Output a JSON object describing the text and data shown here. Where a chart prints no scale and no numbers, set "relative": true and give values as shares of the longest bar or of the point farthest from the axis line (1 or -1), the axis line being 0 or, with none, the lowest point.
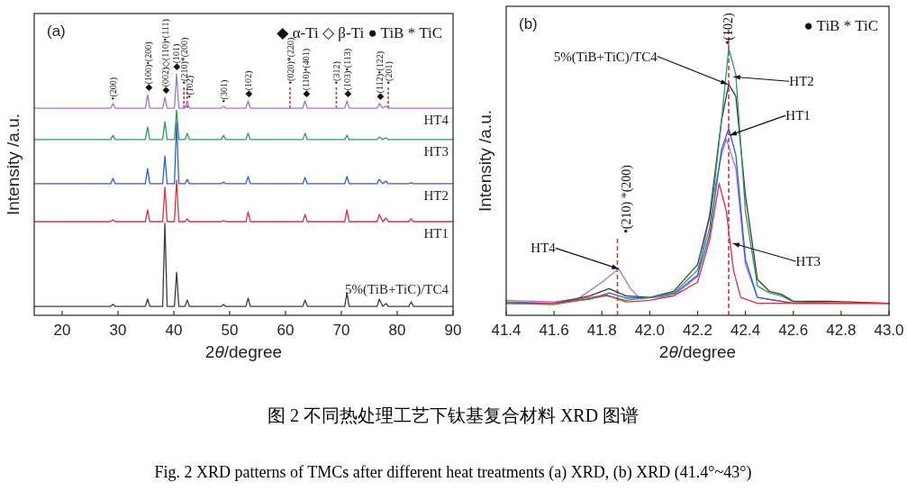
{
  "chart_data": [
    {
      "type": "line",
      "title": "(a)",
      "xlabel": "2θ/degree",
      "ylabel": "Intensity /a.u.",
      "relative": true,
      "xlim": [
        15,
        90
      ],
      "xticks": [
        20,
        30,
        40,
        50,
        60,
        70,
        80,
        90
      ],
      "x": [
        15,
        28.7,
        29.1,
        29.5,
        34.9,
        35.3,
        35.7,
        38.0,
        38.4,
        38.8,
        40.1,
        40.5,
        40.9,
        42.0,
        42.4,
        42.8,
        48.5,
        48.9,
        49.3,
        52.9,
        53.3,
        53.7,
        63.1,
        63.5,
        63.9,
        70.6,
        71.0,
        71.4,
        76.4,
        76.8,
        77.4,
        78.0,
        78.4,
        82.1,
        82.5,
        82.9,
        90
      ],
      "series": [
        {
          "name": "HT4",
          "color": "#a173d6",
          "values": [
            0.858,
            0.858,
            0.877,
            0.858,
            0.858,
            0.914,
            0.858,
            0.858,
            0.903,
            0.858,
            0.858,
            1.0,
            0.858,
            0.858,
            0.884,
            0.858,
            0.858,
            0.866,
            0.858,
            0.858,
            0.888,
            0.858,
            0.858,
            0.888,
            0.858,
            0.858,
            0.888,
            0.858,
            0.858,
            0.877,
            0.858,
            0.866,
            0.858,
            0.858,
            0.858,
            0.858,
            0.858
          ]
        },
        {
          "name": "HT3",
          "color": "#2e9a5a",
          "values": [
            0.728,
            0.728,
            0.746,
            0.728,
            0.728,
            0.78,
            0.728,
            0.728,
            0.802,
            0.728,
            0.728,
            0.85,
            0.728,
            0.728,
            0.754,
            0.728,
            0.728,
            0.746,
            0.728,
            0.728,
            0.754,
            0.728,
            0.728,
            0.754,
            0.728,
            0.728,
            0.746,
            0.728,
            0.728,
            0.739,
            0.728,
            0.735,
            0.728,
            0.728,
            0.728,
            0.728,
            0.728
          ]
        },
        {
          "name": "HT2",
          "color": "#2f5fd0",
          "values": [
            0.545,
            0.545,
            0.567,
            0.545,
            0.545,
            0.608,
            0.545,
            0.545,
            0.66,
            0.545,
            0.545,
            0.8,
            0.545,
            0.545,
            0.563,
            0.545,
            0.545,
            0.552,
            0.545,
            0.545,
            0.575,
            0.545,
            0.545,
            0.571,
            0.545,
            0.545,
            0.575,
            0.545,
            0.545,
            0.563,
            0.545,
            0.556,
            0.545,
            0.545,
            0.549,
            0.545,
            0.545
          ]
        },
        {
          "name": "HT1",
          "color": "#e0303a",
          "values": [
            0.388,
            0.388,
            0.396,
            0.388,
            0.388,
            0.437,
            0.388,
            0.388,
            0.53,
            0.388,
            0.388,
            0.56,
            0.388,
            0.388,
            0.4,
            0.388,
            0.388,
            0.392,
            0.388,
            0.388,
            0.429,
            0.388,
            0.388,
            0.418,
            0.388,
            0.388,
            0.437,
            0.388,
            0.388,
            0.418,
            0.388,
            0.403,
            0.388,
            0.388,
            0.4,
            0.388,
            0.388
          ]
        },
        {
          "name": "5%(TiB+TiC)/TC4",
          "color": "#3a3a3a",
          "values": [
            0.037,
            0.037,
            0.045,
            0.037,
            0.037,
            0.067,
            0.037,
            0.037,
            0.381,
            0.037,
            0.037,
            0.179,
            0.037,
            0.037,
            0.063,
            0.037,
            0.037,
            0.045,
            0.037,
            0.037,
            0.071,
            0.037,
            0.037,
            0.063,
            0.037,
            0.037,
            0.093,
            0.037,
            0.037,
            0.067,
            0.037,
            0.049,
            0.037,
            0.037,
            0.056,
            0.037,
            0.037
          ]
        }
      ],
      "ref_lines": [
        {
          "axis": "x",
          "value": 41.8,
          "color": "#e0303a",
          "line_style": "dotted"
        },
        {
          "axis": "x",
          "value": 42.4,
          "color": "#e0303a",
          "line_style": "dotted"
        },
        {
          "axis": "x",
          "value": 60.8,
          "color": "#e0303a",
          "line_style": "dotted"
        },
        {
          "axis": "x",
          "value": 69.1,
          "color": "#e0303a",
          "line_style": "dotted"
        },
        {
          "axis": "x",
          "value": 78.4,
          "color": "#e0303a",
          "line_style": "dotted"
        }
      ],
      "annotations": [
        "◆ α-Ti  ◇ β-Ti  ● TiB  * TiC",
        {
          "text": "•(200)",
          "x": 29.1,
          "y": 0.877
        },
        {
          "text": "◆(100)•(200)",
          "x": 35.3,
          "y": 0.914
        },
        {
          "text": "◆(002)◇(110)•(111)",
          "x": 38.4,
          "y": 0.903
        },
        {
          "text": "◆(101)",
          "x": 40.3,
          "y": 1.0
        },
        {
          "text": "•(210)*(200)",
          "x": 41.8,
          "y": 0.95
        },
        {
          "text": "•(102)",
          "x": 42.8,
          "y": 0.884
        },
        {
          "text": "•(301)",
          "x": 48.9,
          "y": 0.866
        },
        {
          "text": "◆(102)",
          "x": 53.3,
          "y": 0.888
        },
        {
          "text": "•(020)*(220)",
          "x": 60.8,
          "y": 0.858
        },
        {
          "text": "◆(110)•(401)",
          "x": 63.5,
          "y": 0.888
        },
        {
          "text": "•(312)",
          "x": 69.1,
          "y": 0.858
        },
        {
          "text": "◆(103)•(113)",
          "x": 71.0,
          "y": 0.888
        },
        {
          "text": "◆(112)•(122)",
          "x": 76.8,
          "y": 0.877
        },
        {
          "text": "•(201)",
          "x": 78.4,
          "y": 0.858
        }
      ]
    },
    {
      "type": "line",
      "title": "(b)",
      "xlabel": "2θ/degree",
      "ylabel": "Intensity /a.u.",
      "relative": true,
      "xlim": [
        41.4,
        43.0
      ],
      "xticks": [
        41.4,
        41.6,
        41.8,
        {
          "value": 42,
          "label": "42.0"
        },
        42.2,
        42.4,
        42.6,
        42.8,
        {
          "value": 43,
          "label": "43.0"
        }
      ],
      "series": [
        {
          "color": "#a173d6",
          "x": [
            41.4,
            41.6,
            41.7,
            41.8,
            41.87,
            41.92,
            41.96,
            42.1,
            42.2,
            42.3,
            42.32,
            42.36,
            42.4,
            42.45,
            42.6,
            43.0
          ],
          "values": [
            0.056,
            0.05,
            0.062,
            0.124,
            0.174,
            0.1,
            0.062,
            0.073,
            0.146,
            0.6,
            0.66,
            0.55,
            0.19,
            0.067,
            0.045,
            0.045
          ]
        },
        {
          "color": "#3a3a3a",
          "x": [
            41.4,
            41.6,
            41.75,
            41.83,
            41.9,
            42.0,
            42.1,
            42.2,
            42.25,
            42.3,
            42.33,
            42.36,
            42.4,
            42.45,
            42.5,
            42.55,
            42.6,
            42.75,
            43.0
          ],
          "values": [
            0.045,
            0.045,
            0.073,
            0.1,
            0.073,
            0.067,
            0.09,
            0.19,
            0.37,
            0.73,
            0.865,
            0.82,
            0.45,
            0.135,
            0.09,
            0.079,
            0.053,
            0.053,
            0.045
          ]
        },
        {
          "color": "#2f5fd0",
          "x": [
            41.4,
            41.6,
            41.75,
            41.83,
            41.9,
            42.0,
            42.1,
            42.2,
            42.25,
            42.3,
            42.33,
            42.36,
            42.4,
            42.45,
            42.6,
            43.0
          ],
          "values": [
            0.045,
            0.045,
            0.06,
            0.084,
            0.065,
            0.067,
            0.08,
            0.15,
            0.3,
            0.62,
            0.7,
            0.6,
            0.21,
            0.067,
            0.045,
            0.045
          ]
        },
        {
          "color": "#2e9a5a",
          "x": [
            41.4,
            41.6,
            41.82,
            41.9,
            42.0,
            42.1,
            42.2,
            42.25,
            42.3,
            42.33,
            42.36,
            42.4,
            42.45,
            42.5,
            42.55,
            42.6,
            42.8,
            43.0
          ],
          "values": [
            0.045,
            0.04,
            0.073,
            0.056,
            0.067,
            0.084,
            0.169,
            0.326,
            0.73,
            1.0,
            0.9,
            0.39,
            0.11,
            0.084,
            0.073,
            0.05,
            0.047,
            0.045
          ]
        },
        {
          "color": "#e0303a",
          "x": [
            41.4,
            41.6,
            41.82,
            41.9,
            42.0,
            42.1,
            42.2,
            42.25,
            42.29,
            42.32,
            42.35,
            42.38,
            42.45,
            43.0
          ],
          "values": [
            0.05,
            0.045,
            0.076,
            0.05,
            0.056,
            0.073,
            0.124,
            0.28,
            0.494,
            0.39,
            0.169,
            0.067,
            0.045,
            0.045
          ]
        }
      ],
      "ref_lines": [
        {
          "axis": "x",
          "value": 41.865,
          "color": "#e0303a",
          "line_style": "dashed"
        },
        {
          "axis": "x",
          "value": 42.33,
          "color": "#e0303a",
          "line_style": "dashed"
        }
      ],
      "annotations": [
        "● TiB  * TiC",
        {
          "text": "•(210) *(200)",
          "x": 41.865,
          "y": 0.3
        },
        {
          "text": "•(102)",
          "x": 42.33,
          "y": 1.0
        },
        {
          "text": "5%(TiB+TiC)/TC4",
          "x": 42.325,
          "y": 0.865
        },
        {
          "text": "HT2",
          "x": 42.35,
          "y": 0.893
        },
        {
          "text": "HT1",
          "x": 42.335,
          "y": 0.674
        },
        {
          "text": "HT3",
          "x": 42.347,
          "y": 0.27
        },
        {
          "text": "HT4",
          "x": 41.87,
          "y": 0.174
        }
      ]
    },
    {
      "type": "other",
      "annotations": [
        "图 2 不同热处理工艺下钛基复合材料 XRD 图谱",
        "Fig. 2 XRD patterns of TMCs after different heat treatments (a) XRD, (b) XRD (41.4°~43°)"
      ]
    }
  ]
}
